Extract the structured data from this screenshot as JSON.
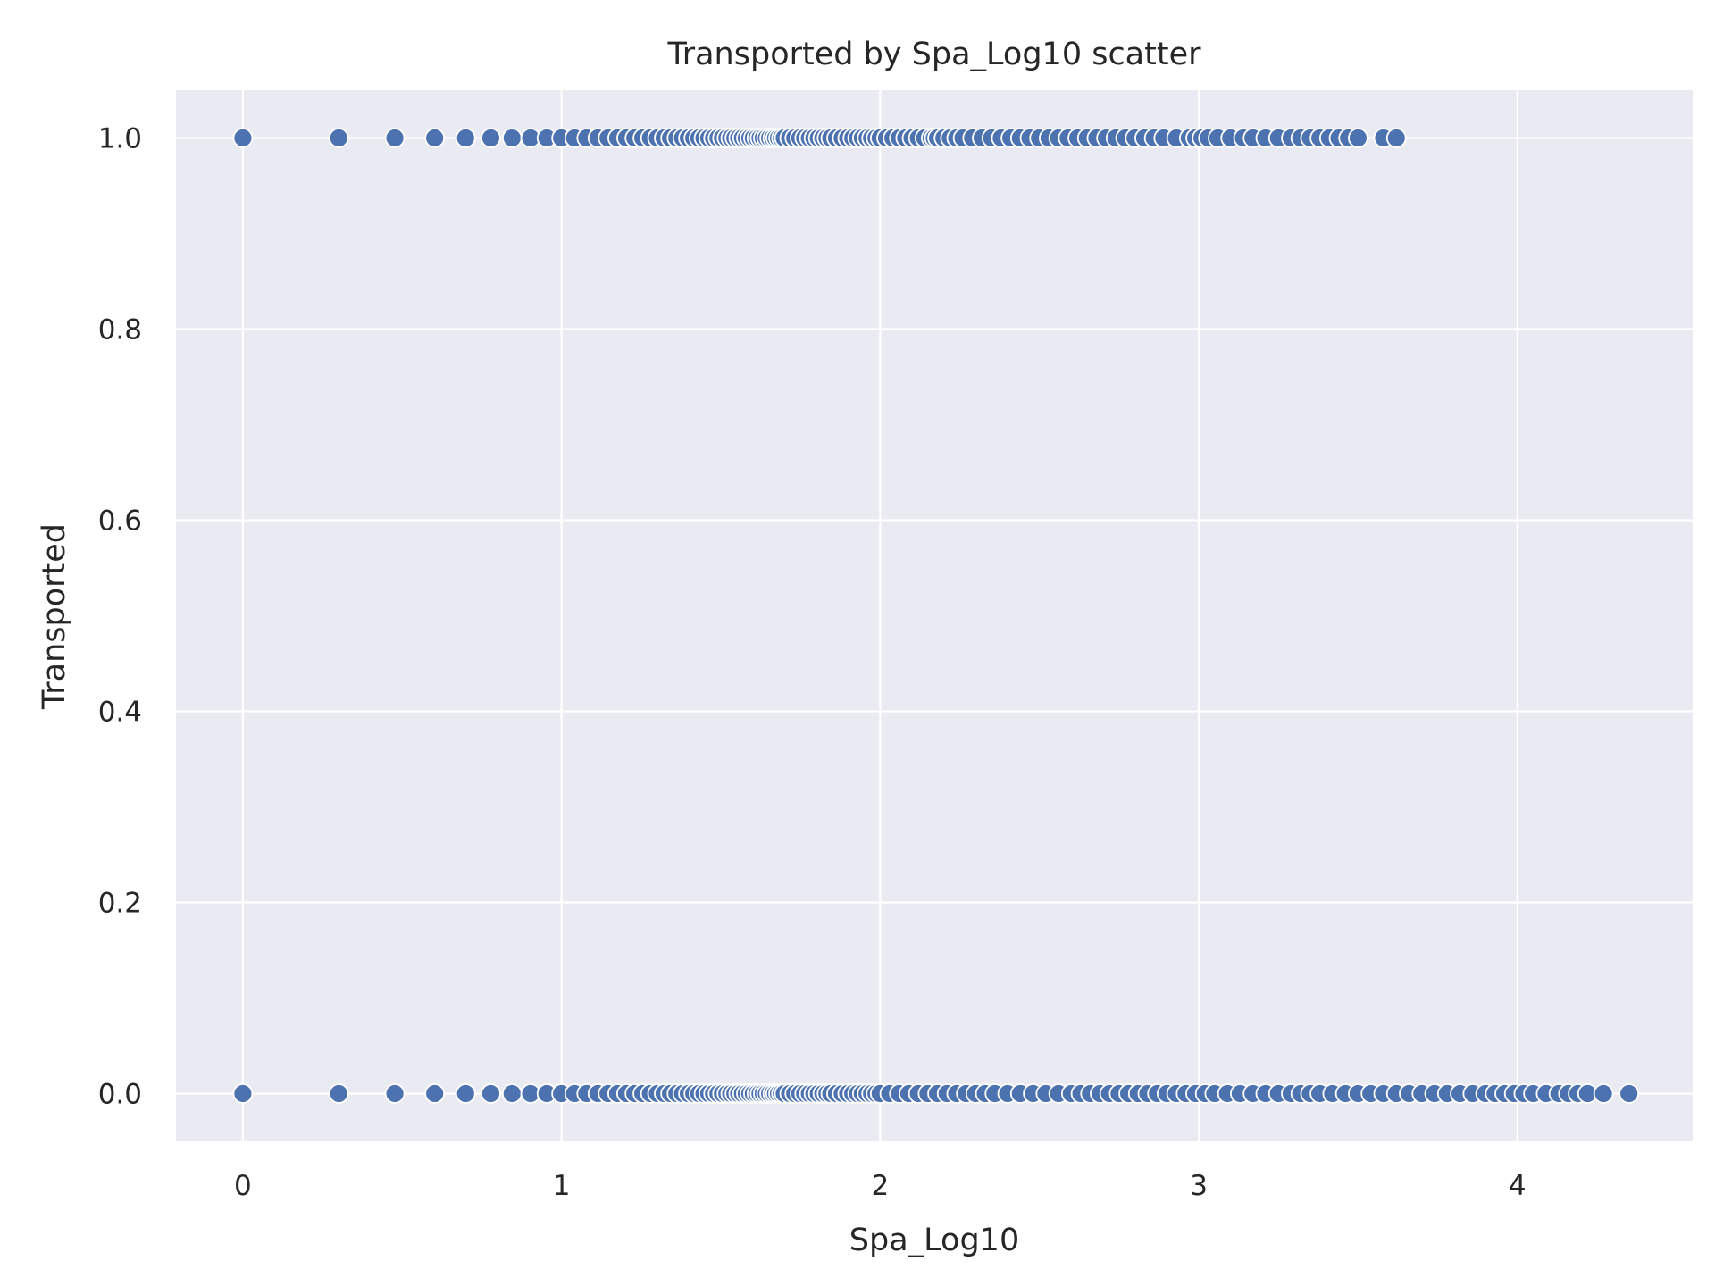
{
  "chart_data": {
    "type": "scatter",
    "title": "Transported by Spa_Log10 scatter",
    "xlabel": "Spa_Log10",
    "ylabel": "Transported",
    "xlim": [
      -0.21,
      4.55
    ],
    "ylim": [
      -0.05,
      1.05
    ],
    "xticks": [
      0,
      1,
      2,
      3,
      4
    ],
    "xtick_labels": [
      "0",
      "1",
      "2",
      "3",
      "4"
    ],
    "yticks": [
      0.0,
      0.2,
      0.4,
      0.6,
      0.8,
      1.0
    ],
    "ytick_labels": [
      "0.0",
      "0.2",
      "0.4",
      "0.6",
      "0.8",
      "1.0"
    ],
    "grid": true,
    "background": "#eaeaf2",
    "point_color": "#4c72b0",
    "series": [
      {
        "y": 1,
        "x": [
          0.0,
          0.301,
          0.477,
          0.602,
          0.699,
          0.778,
          0.845,
          0.903,
          0.954,
          1.0,
          1.041,
          1.079,
          1.114,
          1.146,
          1.176,
          1.204,
          1.23,
          1.255,
          1.279,
          1.301,
          1.322,
          1.342,
          1.362,
          1.38,
          1.398,
          1.415,
          1.431,
          1.447,
          1.462,
          1.477,
          1.491,
          1.505,
          1.519,
          1.531,
          1.544,
          1.556,
          1.568,
          1.58,
          1.591,
          1.602,
          1.613,
          1.623,
          1.633,
          1.643,
          1.653,
          1.663,
          1.672,
          1.681,
          1.69,
          1.699,
          1.716,
          1.732,
          1.748,
          1.763,
          1.778,
          1.792,
          1.806,
          1.82,
          1.833,
          1.845,
          1.863,
          1.881,
          1.898,
          1.914,
          1.929,
          1.944,
          1.959,
          1.973,
          1.987,
          2.0,
          2.02,
          2.04,
          2.06,
          2.08,
          2.1,
          2.12,
          2.14,
          2.16,
          2.17,
          2.18,
          2.2,
          2.22,
          2.24,
          2.26,
          2.29,
          2.32,
          2.35,
          2.38,
          2.41,
          2.44,
          2.47,
          2.5,
          2.53,
          2.56,
          2.59,
          2.62,
          2.65,
          2.68,
          2.71,
          2.74,
          2.77,
          2.8,
          2.83,
          2.86,
          2.89,
          2.93,
          2.97,
          2.99,
          3.01,
          3.03,
          3.06,
          3.1,
          3.14,
          3.17,
          3.21,
          3.25,
          3.29,
          3.32,
          3.35,
          3.38,
          3.41,
          3.44,
          3.47,
          3.5,
          3.58,
          3.62
        ]
      },
      {
        "y": 0,
        "x": [
          0.0,
          0.301,
          0.477,
          0.602,
          0.699,
          0.778,
          0.845,
          0.903,
          0.954,
          1.0,
          1.041,
          1.079,
          1.114,
          1.146,
          1.176,
          1.204,
          1.23,
          1.255,
          1.279,
          1.301,
          1.322,
          1.342,
          1.362,
          1.38,
          1.398,
          1.415,
          1.431,
          1.447,
          1.462,
          1.477,
          1.491,
          1.505,
          1.519,
          1.531,
          1.544,
          1.556,
          1.568,
          1.58,
          1.591,
          1.602,
          1.613,
          1.623,
          1.633,
          1.643,
          1.653,
          1.663,
          1.672,
          1.681,
          1.69,
          1.699,
          1.716,
          1.732,
          1.748,
          1.763,
          1.778,
          1.792,
          1.806,
          1.82,
          1.833,
          1.845,
          1.863,
          1.881,
          1.898,
          1.914,
          1.929,
          1.944,
          1.959,
          1.973,
          1.987,
          2.0,
          2.03,
          2.06,
          2.09,
          2.12,
          2.15,
          2.18,
          2.21,
          2.24,
          2.27,
          2.3,
          2.33,
          2.36,
          2.4,
          2.44,
          2.48,
          2.52,
          2.56,
          2.6,
          2.63,
          2.66,
          2.69,
          2.72,
          2.75,
          2.78,
          2.81,
          2.84,
          2.87,
          2.9,
          2.93,
          2.96,
          2.99,
          3.02,
          3.05,
          3.09,
          3.13,
          3.17,
          3.21,
          3.25,
          3.29,
          3.32,
          3.35,
          3.38,
          3.42,
          3.46,
          3.5,
          3.54,
          3.58,
          3.62,
          3.66,
          3.7,
          3.74,
          3.78,
          3.82,
          3.86,
          3.9,
          3.93,
          3.96,
          3.99,
          4.02,
          4.05,
          4.09,
          4.13,
          4.16,
          4.19,
          4.22,
          4.27,
          4.35
        ]
      }
    ]
  }
}
